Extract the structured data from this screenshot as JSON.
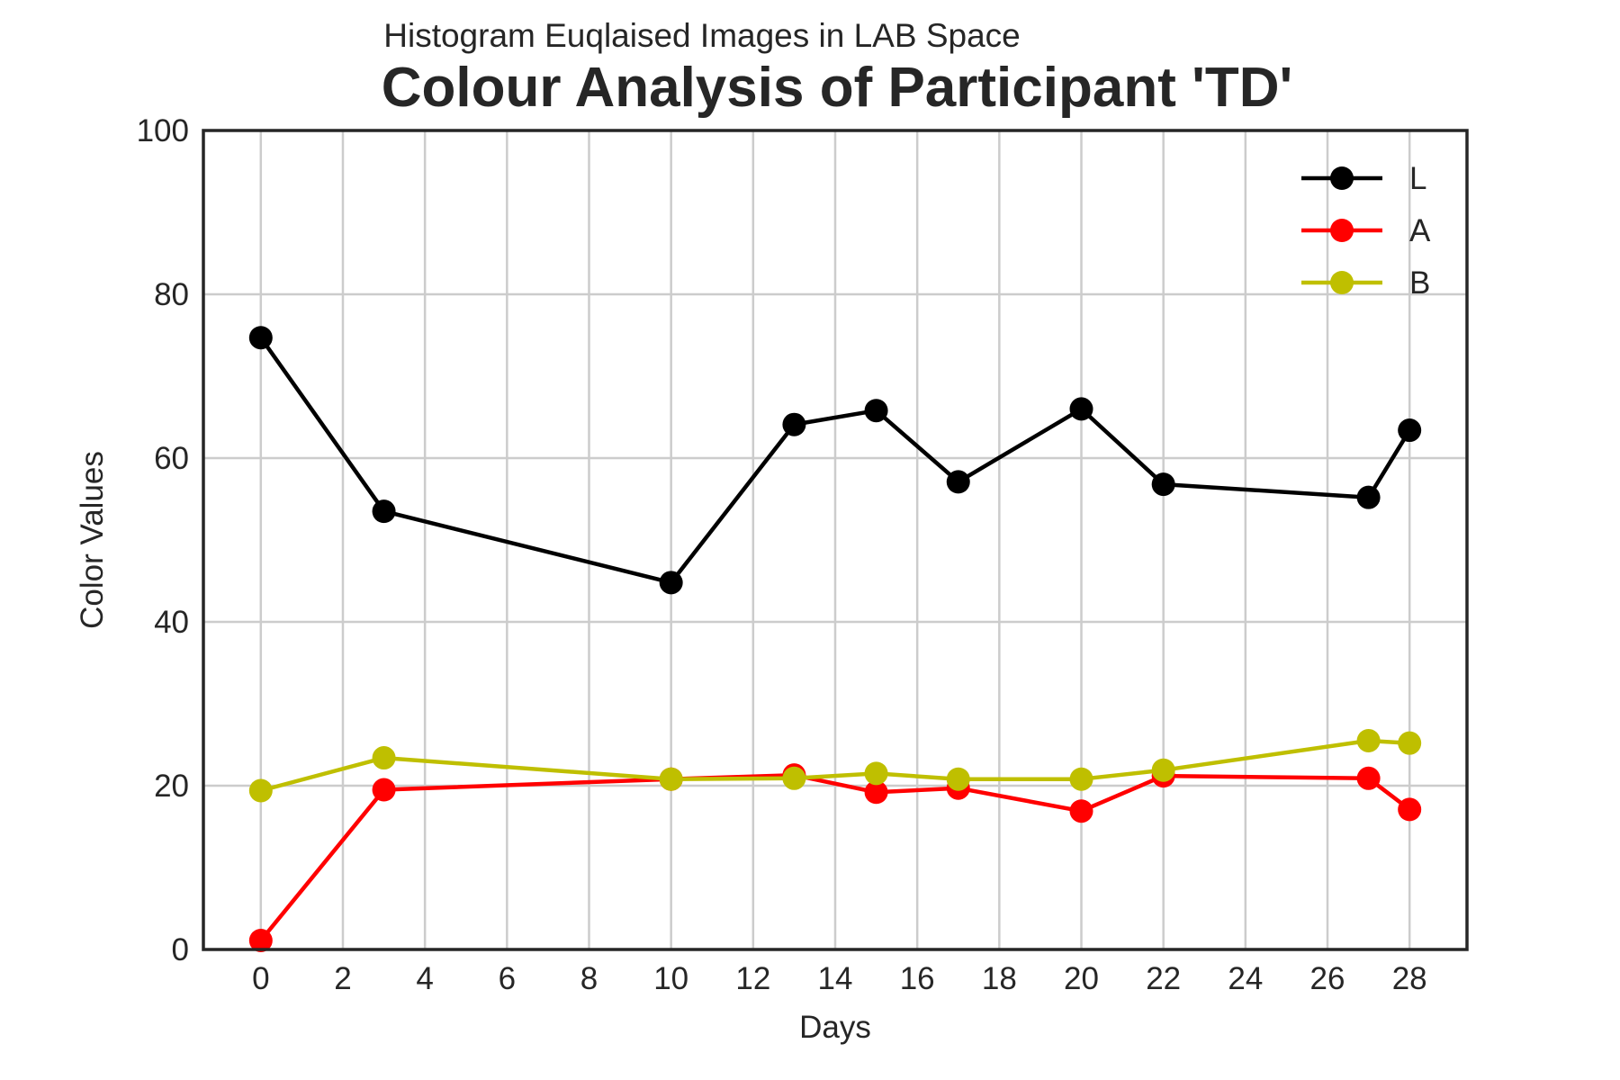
{
  "chart_data": {
    "type": "line",
    "suptitle": "Histogram Euqlaised Images in LAB Space",
    "title": "Colour Analysis of Participant 'TD'",
    "xlabel": "Days",
    "ylabel": "Color Values",
    "xlim": [
      -1.4,
      29.4
    ],
    "ylim": [
      0,
      100
    ],
    "xticks": [
      0,
      2,
      4,
      6,
      8,
      10,
      12,
      14,
      16,
      18,
      20,
      22,
      24,
      26,
      28
    ],
    "yticks": [
      0,
      20,
      40,
      60,
      80,
      100
    ],
    "grid": true,
    "legend_position": "top-right",
    "x": [
      0,
      3,
      10,
      13,
      15,
      17,
      20,
      22,
      27,
      28
    ],
    "series": [
      {
        "name": "L",
        "color": "#000000",
        "values": [
          74.7,
          53.5,
          44.8,
          64.1,
          65.8,
          57.1,
          66.0,
          56.8,
          55.2,
          63.4
        ]
      },
      {
        "name": "A",
        "color": "#ff0000",
        "values": [
          1.1,
          19.5,
          20.8,
          21.3,
          19.2,
          19.7,
          16.9,
          21.2,
          20.9,
          17.1
        ]
      },
      {
        "name": "B",
        "color": "#bfbf00",
        "values": [
          19.4,
          23.4,
          20.8,
          20.9,
          21.5,
          20.8,
          20.8,
          21.9,
          25.5,
          25.2
        ]
      }
    ]
  }
}
